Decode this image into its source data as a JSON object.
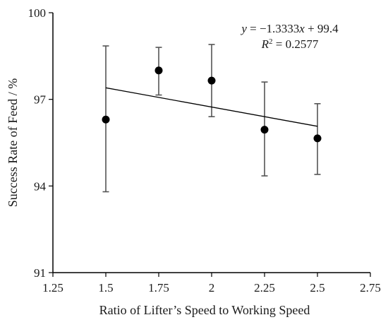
{
  "chart_data": {
    "type": "scatter",
    "xlabel": "Ratio of Lifter’s Speed to Working Speed",
    "ylabel": "Success Rate of Feed / %",
    "xlim": [
      1.25,
      2.75
    ],
    "ylim": [
      91,
      100
    ],
    "x_ticks": [
      1.25,
      1.5,
      1.75,
      2,
      2.25,
      2.5,
      2.75
    ],
    "x_tick_labels": [
      "1.25",
      "1.5",
      "1.75",
      "2",
      "2.25",
      "2.5",
      "2.75"
    ],
    "y_ticks": [
      91,
      94,
      97,
      100
    ],
    "y_tick_labels": [
      "91",
      "94",
      "97",
      "100"
    ],
    "grid": false,
    "series": [
      {
        "x": [
          1.5,
          1.75,
          2,
          2.25,
          2.5
        ],
        "y": [
          96.3,
          98.0,
          97.65,
          95.95,
          95.65
        ],
        "error_upper": [
          98.85,
          98.8,
          98.9,
          97.6,
          96.85
        ],
        "error_lower": [
          93.8,
          97.15,
          96.4,
          94.35,
          94.4
        ]
      }
    ],
    "trendline": {
      "slope": -1.3333,
      "intercept": 99.4,
      "x_range": [
        1.5,
        2.5
      ]
    },
    "equation": {
      "y_var": "y",
      "eq_body": " = −1.3333",
      "x_var": "x",
      "eq_tail": " + 99.4",
      "r_var": "R",
      "r_sup": "2",
      "r_value": " = 0.2577"
    },
    "colors": {
      "marker": "#000000",
      "trendline": "#000000",
      "error_bar": "#555555",
      "axis": "#000000"
    }
  }
}
